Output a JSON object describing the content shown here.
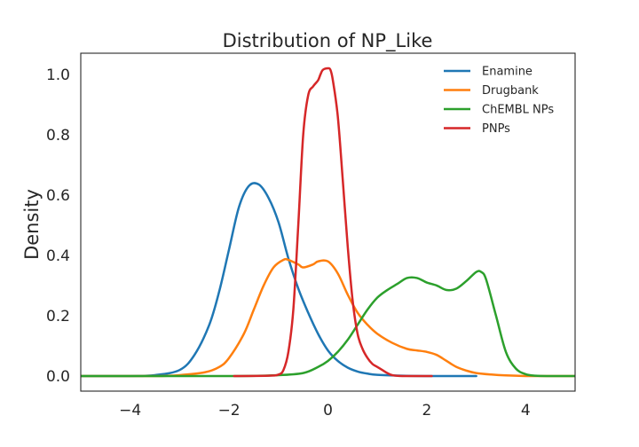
{
  "chart_data": {
    "type": "line",
    "title": "Distribution of NP_Like",
    "xlabel": "",
    "ylabel": "Density",
    "xlim": [
      -5,
      5
    ],
    "ylim": [
      -0.05,
      1.07
    ],
    "xticks": [
      -4,
      -2,
      0,
      2,
      4
    ],
    "yticks": [
      0.0,
      0.2,
      0.4,
      0.6,
      0.8,
      1.0
    ],
    "xtick_labels": [
      "−4",
      "−2",
      "0",
      "2",
      "4"
    ],
    "ytick_labels": [
      "0.0",
      "0.2",
      "0.4",
      "0.6",
      "0.8",
      "1.0"
    ],
    "grid": false,
    "legend_position": "top-right",
    "series": [
      {
        "name": "Enamine",
        "color": "#1f77b4",
        "x": [
          -5.0,
          -4.0,
          -3.5,
          -3.0,
          -2.7,
          -2.4,
          -2.2,
          -2.0,
          -1.8,
          -1.6,
          -1.4,
          -1.2,
          -1.0,
          -0.8,
          -0.6,
          -0.4,
          -0.2,
          0.0,
          0.2,
          0.4,
          0.6,
          0.8,
          1.0,
          1.5,
          2.0,
          2.5,
          3.0
        ],
        "y": [
          0.0,
          0.0,
          0.003,
          0.02,
          0.07,
          0.17,
          0.28,
          0.42,
          0.56,
          0.63,
          0.635,
          0.59,
          0.51,
          0.39,
          0.29,
          0.21,
          0.14,
          0.085,
          0.05,
          0.028,
          0.015,
          0.008,
          0.004,
          0.001,
          0.0,
          0.0,
          0.0
        ]
      },
      {
        "name": "Drugbank",
        "color": "#ff7f0e",
        "x": [
          -5.0,
          -3.5,
          -3.0,
          -2.5,
          -2.2,
          -2.0,
          -1.7,
          -1.5,
          -1.3,
          -1.1,
          -0.9,
          -0.8,
          -0.6,
          -0.5,
          -0.3,
          -0.2,
          0.0,
          0.2,
          0.4,
          0.6,
          0.8,
          1.0,
          1.3,
          1.6,
          1.8,
          2.0,
          2.2,
          2.4,
          2.6,
          2.8,
          3.0,
          3.3,
          3.6,
          4.0,
          4.3,
          5.0
        ],
        "y": [
          0.0,
          0.0,
          0.003,
          0.012,
          0.03,
          0.06,
          0.14,
          0.22,
          0.3,
          0.36,
          0.385,
          0.385,
          0.37,
          0.36,
          0.37,
          0.38,
          0.38,
          0.34,
          0.27,
          0.21,
          0.17,
          0.14,
          0.11,
          0.09,
          0.085,
          0.08,
          0.07,
          0.05,
          0.03,
          0.018,
          0.01,
          0.005,
          0.002,
          0.0,
          0.0,
          0.0
        ]
      },
      {
        "name": "ChEMBL NPs",
        "color": "#2ca02c",
        "x": [
          -5.0,
          -2.0,
          -1.0,
          -0.5,
          -0.2,
          0.0,
          0.2,
          0.4,
          0.6,
          0.8,
          1.0,
          1.2,
          1.4,
          1.6,
          1.8,
          2.0,
          2.2,
          2.4,
          2.6,
          2.8,
          3.0,
          3.1,
          3.2,
          3.4,
          3.6,
          3.8,
          4.0,
          4.2,
          4.5,
          5.0
        ],
        "y": [
          0.0,
          0.0,
          0.003,
          0.01,
          0.03,
          0.05,
          0.08,
          0.12,
          0.17,
          0.22,
          0.26,
          0.285,
          0.305,
          0.325,
          0.325,
          0.31,
          0.3,
          0.285,
          0.29,
          0.315,
          0.345,
          0.345,
          0.32,
          0.2,
          0.08,
          0.025,
          0.006,
          0.001,
          0.0,
          0.0
        ]
      },
      {
        "name": "PNPs",
        "color": "#d62728",
        "x": [
          -1.9,
          -1.2,
          -1.0,
          -0.9,
          -0.8,
          -0.7,
          -0.6,
          -0.5,
          -0.4,
          -0.3,
          -0.2,
          -0.15,
          -0.1,
          0.0,
          0.05,
          0.1,
          0.2,
          0.3,
          0.4,
          0.5,
          0.6,
          0.7,
          0.8,
          0.9,
          1.0,
          1.1,
          1.2,
          1.3,
          1.5,
          2.1
        ],
        "y": [
          0.0,
          0.001,
          0.005,
          0.02,
          0.08,
          0.22,
          0.5,
          0.8,
          0.93,
          0.96,
          0.98,
          1.0,
          1.015,
          1.02,
          1.015,
          0.98,
          0.86,
          0.65,
          0.43,
          0.25,
          0.14,
          0.09,
          0.06,
          0.04,
          0.03,
          0.02,
          0.01,
          0.003,
          0.0,
          0.0
        ]
      }
    ]
  }
}
